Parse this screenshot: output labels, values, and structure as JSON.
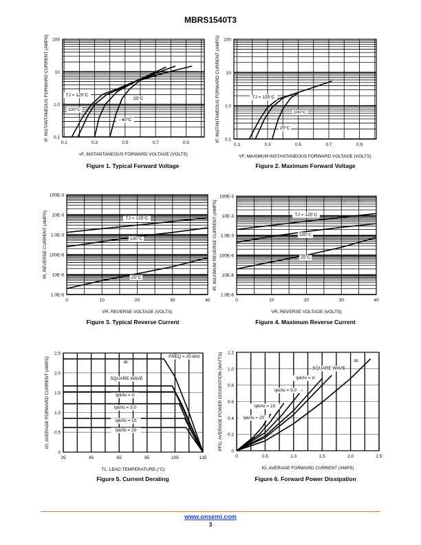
{
  "header": {
    "title": "MBRS1540T3"
  },
  "footer": {
    "url": "www.onsemi.com",
    "page": "3"
  },
  "chart_data": [
    {
      "type": "line",
      "title": "Figure 1. Typical Forward Voltage",
      "xlabel": "vF, INSTANTANEOUS FORWARD VOLTAGE (VOLTS)",
      "ylabel": "iF, INSTANTANEOUS FORWARD CURRENT (AMPS)",
      "xlim": [
        0.09,
        1.02
      ],
      "ylim": [
        0.1,
        100
      ],
      "yscale": "log",
      "grid": true,
      "xticks": {
        "values": [
          0.1,
          0.3,
          0.5,
          0.7,
          0.9
        ],
        "labels": [
          "0.1",
          "0.3",
          "0.5",
          "0.7",
          "0.9"
        ]
      },
      "yticks": {
        "values": [
          0.1,
          1,
          10,
          100
        ],
        "labels": [
          "0.1",
          "1.0",
          "10",
          "100"
        ]
      },
      "series": [
        {
          "name": "TJ = 125°C",
          "points": [
            [
              0.15,
              0.1
            ],
            [
              0.22,
              0.4
            ],
            [
              0.28,
              1.0
            ],
            [
              0.35,
              2
            ],
            [
              0.45,
              3
            ],
            [
              0.6,
              6
            ],
            [
              0.77,
              14
            ]
          ]
        },
        {
          "name": "100°C",
          "points": [
            [
              0.19,
              0.1
            ],
            [
              0.25,
              0.4
            ],
            [
              0.3,
              1.0
            ],
            [
              0.38,
              2
            ],
            [
              0.5,
              3.5
            ],
            [
              0.6,
              6
            ],
            [
              0.83,
              15
            ]
          ]
        },
        {
          "name": "25°C",
          "points": [
            [
              0.3,
              0.1
            ],
            [
              0.33,
              0.4
            ],
            [
              0.37,
              1.0
            ],
            [
              0.45,
              2.5
            ],
            [
              0.6,
              6
            ],
            [
              0.94,
              15
            ]
          ]
        },
        {
          "name": "- 40°C",
          "points": [
            [
              0.4,
              0.1
            ],
            [
              0.44,
              0.5
            ],
            [
              0.48,
              1.5
            ],
            [
              0.53,
              3
            ],
            [
              0.6,
              5.5
            ],
            [
              0.75,
              9
            ]
          ]
        }
      ],
      "annotations": [
        "TJ = 125°C",
        "100°C",
        "25°C",
        "- 40°C"
      ]
    },
    {
      "type": "line",
      "title": "Figure 2. Maximum Forward Voltage",
      "xlabel": "VF, MAXIMUM INSTANTANEOUS FORWARD VOLTAGE (VOLTS)",
      "ylabel": "IF, INSTANTANEOUS FORWARD CURRENT (AMPS)",
      "xlim": [
        0.08,
        1.01
      ],
      "ylim": [
        0.1,
        100
      ],
      "yscale": "log",
      "grid": true,
      "xticks": {
        "values": [
          0.1,
          0.3,
          0.5,
          0.7,
          0.9
        ],
        "labels": [
          "0.1",
          "0.3",
          "0.5",
          "0.7",
          "0.9"
        ]
      },
      "yticks": {
        "values": [
          0.1,
          1,
          10,
          100
        ],
        "labels": [
          "0.1",
          "1.0",
          "10",
          "100"
        ]
      },
      "series": [
        {
          "name": "TJ = 125°C",
          "points": [
            [
              0.18,
              0.1
            ],
            [
              0.25,
              0.4
            ],
            [
              0.3,
              0.9
            ],
            [
              0.37,
              1.6
            ],
            [
              0.5,
              2.5
            ],
            [
              0.72,
              5.5
            ]
          ]
        },
        {
          "name": "100°C",
          "points": [
            [
              0.22,
              0.1
            ],
            [
              0.28,
              0.4
            ],
            [
              0.33,
              0.9
            ],
            [
              0.4,
              1.7
            ],
            [
              0.5,
              2.5
            ]
          ]
        },
        {
          "name": "25°C",
          "points": [
            [
              0.33,
              0.1
            ],
            [
              0.37,
              0.4
            ],
            [
              0.4,
              0.8
            ],
            [
              0.45,
              1.7
            ],
            [
              0.5,
              2.4
            ]
          ]
        }
      ],
      "annotations": [
        "TJ = 125°C",
        "100°C",
        "25°C"
      ]
    },
    {
      "type": "line",
      "title": "Figure 3. Typical Reverse Current",
      "xlabel": "VR, REVERSE VOLTAGE (VOLTS)",
      "ylabel": "IR, REVERSE CURRENT (AMPS)",
      "xlim": [
        0,
        40
      ],
      "ylim": [
        1e-06,
        0.1
      ],
      "yscale": "log",
      "grid": true,
      "xticks": {
        "values": [
          0,
          10,
          20,
          30,
          40
        ],
        "labels": [
          "0",
          "10",
          "20",
          "30",
          "40"
        ]
      },
      "yticks": {
        "values": [
          1e-06,
          1e-05,
          0.0001,
          0.001,
          0.01,
          0.1
        ],
        "labels": [
          "1.0E-6",
          "10E-6",
          "100E-6",
          "1.0E-3",
          "10E-3",
          "100E-3"
        ]
      },
      "series": [
        {
          "name": "TJ = 125°C",
          "points": [
            [
              0,
              0.0013
            ],
            [
              10,
              0.002
            ],
            [
              20,
              0.003
            ],
            [
              30,
              0.0046
            ],
            [
              40,
              0.007
            ]
          ]
        },
        {
          "name": "100°C",
          "points": [
            [
              0,
              0.00025
            ],
            [
              10,
              0.00045
            ],
            [
              20,
              0.0008
            ],
            [
              30,
              0.0013
            ],
            [
              40,
              0.0022
            ]
          ]
        },
        {
          "name": "25°C",
          "points": [
            [
              0,
              2e-06
            ],
            [
              10,
              5e-06
            ],
            [
              20,
              1.1e-05
            ],
            [
              30,
              2.5e-05
            ],
            [
              40,
              7e-05
            ]
          ]
        }
      ],
      "annotations": [
        "TJ = 125°C",
        "100°C",
        "25°C"
      ]
    },
    {
      "type": "line",
      "title": "Figure 4. Maximum Reverse Current",
      "xlabel": "VR, REVERSE VOLTAGE (VOLTS)",
      "ylabel": "IR, MAXIMUM REVERSE CURRENT (AMPS)",
      "xlim": [
        0,
        40
      ],
      "ylim": [
        1e-06,
        0.1
      ],
      "yscale": "log",
      "grid": true,
      "xticks": {
        "values": [
          0,
          10,
          20,
          30,
          40
        ],
        "labels": [
          "0",
          "10",
          "20",
          "30",
          "40"
        ]
      },
      "yticks": {
        "values": [
          1e-06,
          1e-05,
          0.0001,
          0.001,
          0.01,
          0.1
        ],
        "labels": [
          "1.0E-6",
          "10E-6",
          "100E-6",
          "1.0E-3",
          "10E-3",
          "100E-3"
        ]
      },
      "series": [
        {
          "name": "TJ = 125°C",
          "points": [
            [
              0,
              0.002
            ],
            [
              10,
              0.0033
            ],
            [
              20,
              0.0053
            ],
            [
              30,
              0.0083
            ],
            [
              40,
              0.013
            ]
          ]
        },
        {
          "name": "100°C",
          "points": [
            [
              0,
              0.00045
            ],
            [
              10,
              0.0009
            ],
            [
              20,
              0.0016
            ],
            [
              30,
              0.0026
            ],
            [
              40,
              0.004
            ]
          ]
        },
        {
          "name": "25°C",
          "points": [
            [
              0,
              2e-05
            ],
            [
              10,
              4.5e-05
            ],
            [
              20,
              0.0001
            ],
            [
              30,
              0.00025
            ],
            [
              40,
              0.0008
            ]
          ]
        }
      ],
      "annotations": [
        "TJ = 125°C",
        "100°C",
        "25°C"
      ]
    },
    {
      "type": "line",
      "title": "Figure 5. Current Derating",
      "xlabel": "TL, LEAD TEMPERATURE (°C)",
      "ylabel": "IO, AVERAGE FORWARD CURRENT (AMPS)",
      "xlim": [
        25,
        125
      ],
      "ylim": [
        0,
        2.5
      ],
      "yscale": "linear",
      "grid": true,
      "xticks": {
        "values": [
          25,
          45,
          65,
          85,
          105,
          125
        ],
        "labels": [
          "25",
          "45",
          "65",
          "85",
          "105",
          "125"
        ]
      },
      "yticks": {
        "values": [
          0,
          0.5,
          1.0,
          1.5,
          2.0,
          2.5
        ],
        "labels": [
          "0",
          "0.5",
          "1.0",
          "1.5",
          "2.0",
          "2.5"
        ]
      },
      "series": [
        {
          "name": "dc",
          "points": [
            [
              25,
              2.35
            ],
            [
              97,
              2.35
            ],
            [
              105,
              1.9
            ],
            [
              115,
              1.0
            ],
            [
              125,
              0
            ]
          ]
        },
        {
          "name": "SQUARE WAVE",
          "points": [
            [
              25,
              1.67
            ],
            [
              103,
              1.67
            ],
            [
              110,
              1.2
            ],
            [
              118,
              0.55
            ],
            [
              125,
              0
            ]
          ]
        },
        {
          "name": "Ipk/Io = π",
          "points": [
            [
              25,
              1.52
            ],
            [
              105,
              1.52
            ],
            [
              112,
              1.0
            ],
            [
              119,
              0.45
            ],
            [
              125,
              0
            ]
          ]
        },
        {
          "name": "Ipk/Io = 5.0",
          "points": [
            [
              25,
              1.22
            ],
            [
              108,
              1.22
            ],
            [
              114,
              0.75
            ],
            [
              120,
              0.3
            ],
            [
              125,
              0
            ]
          ]
        },
        {
          "name": "Ipk/Io = 10",
          "points": [
            [
              25,
              0.85
            ],
            [
              112,
              0.85
            ],
            [
              117,
              0.5
            ],
            [
              125,
              0
            ]
          ]
        },
        {
          "name": "Ipk/Io = 20",
          "points": [
            [
              25,
              0.62
            ],
            [
              113,
              0.62
            ],
            [
              118,
              0.35
            ],
            [
              125,
              0
            ]
          ]
        }
      ],
      "annotations": [
        "FREQ = 20 kHz",
        "dc",
        "SQUARE WAVE",
        "Ipk/Io = π",
        "Ipk/Io = 5.0",
        "Ipk/Io = 10",
        "Ipk/Io = 20"
      ]
    },
    {
      "type": "line",
      "title": "Figure 6. Forward Power Dissipation",
      "xlabel": "IO, AVERAGE FORWARD CURRENT (AMPS)",
      "ylabel": "PFO, AVERAGE POWER DISSIPATION (WATTS)",
      "xlim": [
        0,
        2.5
      ],
      "ylim": [
        0,
        1.2
      ],
      "yscale": "linear",
      "grid": true,
      "xticks": {
        "values": [
          0,
          0.5,
          1.0,
          1.5,
          2.0,
          2.5
        ],
        "labels": [
          "0",
          "0.5",
          "1.0",
          "1.5",
          "2.0",
          "2.5"
        ]
      },
      "yticks": {
        "values": [
          0,
          0.2,
          0.4,
          0.6,
          0.8,
          1.0,
          1.2
        ],
        "labels": [
          "0",
          "0.2",
          "0.4",
          "0.6",
          "0.8",
          "1.0",
          "1.2"
        ]
      },
      "series": [
        {
          "name": "dc",
          "points": [
            [
              0,
              0
            ],
            [
              0.5,
              0.12
            ],
            [
              1,
              0.33
            ],
            [
              1.5,
              0.59
            ],
            [
              2,
              0.88
            ],
            [
              2.35,
              1.12
            ]
          ]
        },
        {
          "name": "SQUARE WAVE",
          "points": [
            [
              0,
              0
            ],
            [
              0.5,
              0.16
            ],
            [
              1,
              0.44
            ],
            [
              1.5,
              0.8
            ],
            [
              1.67,
              0.92
            ]
          ]
        },
        {
          "name": "Ipk/Io = π",
          "points": [
            [
              0,
              0
            ],
            [
              0.5,
              0.18
            ],
            [
              1,
              0.49
            ],
            [
              1.5,
              0.88
            ]
          ]
        },
        {
          "name": "Ipk/Io = 5.0",
          "points": [
            [
              0,
              0
            ],
            [
              0.5,
              0.22
            ],
            [
              0.8,
              0.44
            ],
            [
              1.15,
              0.74
            ]
          ]
        },
        {
          "name": "Ipk/Io = 10",
          "points": [
            [
              0,
              0
            ],
            [
              0.4,
              0.2
            ],
            [
              0.6,
              0.36
            ],
            [
              0.83,
              0.58
            ]
          ]
        },
        {
          "name": "Ipk/Io = 20",
          "points": [
            [
              0,
              0
            ],
            [
              0.3,
              0.17
            ],
            [
              0.45,
              0.29
            ],
            [
              0.6,
              0.45
            ]
          ]
        }
      ],
      "annotations": [
        "dc",
        "SQUARE WAVE",
        "Ipk/Io = π",
        "Ipk/Io = 5.0",
        "Ipk/Io = 10",
        "Ipk/Io = 20"
      ]
    }
  ]
}
